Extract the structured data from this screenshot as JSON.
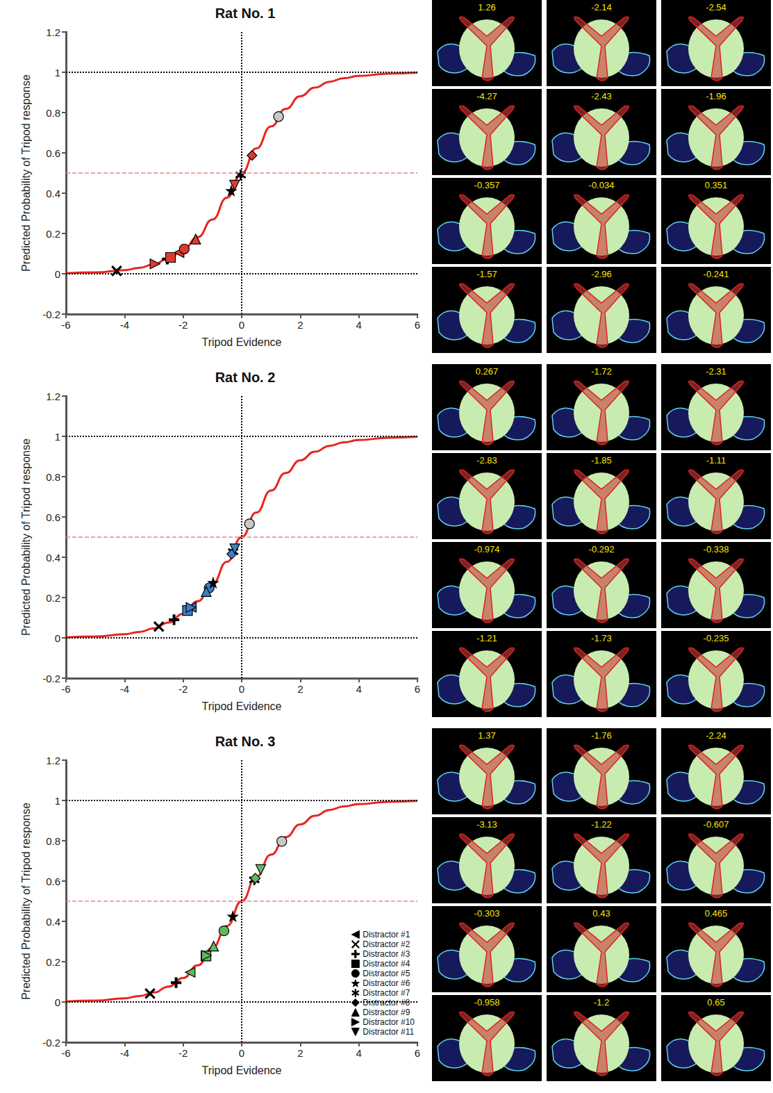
{
  "chart_data": [
    {
      "type": "scatter",
      "title": "Rat No. 1",
      "x_label": "Tripod Evidence",
      "y_label": "Predicted Probability of Tripod response",
      "xlim": [
        -6,
        6
      ],
      "xticks": [
        -6,
        -4,
        -2,
        0,
        2,
        4,
        6
      ],
      "ylim": [
        -0.2,
        1.2
      ],
      "yticks": [
        -0.2,
        0,
        0.2,
        0.4,
        0.6,
        0.8,
        1,
        1.2
      ],
      "curve": {
        "color": "#e8251e",
        "x": [
          -6,
          -5,
          -4,
          -3.5,
          -3,
          -2.5,
          -2,
          -1.5,
          -1,
          -0.5,
          0,
          0.5,
          1,
          1.5,
          2,
          2.5,
          3,
          3.5,
          4,
          5,
          6
        ],
        "y": [
          0.0025,
          0.0067,
          0.018,
          0.029,
          0.047,
          0.076,
          0.119,
          0.182,
          0.269,
          0.378,
          0.5,
          0.622,
          0.731,
          0.818,
          0.881,
          0.924,
          0.953,
          0.971,
          0.982,
          0.993,
          0.998
        ]
      },
      "hlines": [
        0,
        1
      ],
      "vlines": [
        0
      ],
      "threshold": 0.5,
      "points": [
        {
          "marker": "circle",
          "color": "#c8c8c8",
          "x": 1.26,
          "y": 0.78
        },
        {
          "marker": "triangle-left",
          "color": "#e03a2f",
          "x": -2.14,
          "y": 0.105
        },
        {
          "marker": "x",
          "color": "#000000",
          "x": -4.27,
          "y": 0.014
        },
        {
          "marker": "plus",
          "color": "#000000",
          "x": -2.54,
          "y": 0.073
        },
        {
          "marker": "square",
          "color": "#e03a2f",
          "x": -2.43,
          "y": 0.081
        },
        {
          "marker": "circle",
          "color": "#e03a2f",
          "x": -1.96,
          "y": 0.123
        },
        {
          "marker": "star",
          "color": "#000000",
          "x": -0.357,
          "y": 0.412
        },
        {
          "marker": "asterisk",
          "color": "#000000",
          "x": -0.034,
          "y": 0.49
        },
        {
          "marker": "diamond",
          "color": "#e03a2f",
          "x": 0.351,
          "y": 0.587
        },
        {
          "marker": "triangle",
          "color": "#e03a2f",
          "x": -1.57,
          "y": 0.172
        },
        {
          "marker": "triangle-right",
          "color": "#e03a2f",
          "x": -2.96,
          "y": 0.049
        },
        {
          "marker": "triangle-down",
          "color": "#e03a2f",
          "x": -0.241,
          "y": 0.44
        }
      ],
      "panel_values": [
        1.26,
        -2.14,
        -2.54,
        -4.27,
        -2.43,
        -1.96,
        -0.357,
        -0.034,
        0.351,
        -1.57,
        -2.96,
        -0.241
      ]
    },
    {
      "type": "scatter",
      "title": "Rat No. 2",
      "x_label": "Tripod Evidence",
      "y_label": "Predicted Probability of Tripod response",
      "xlim": [
        -6,
        6
      ],
      "xticks": [
        -6,
        -4,
        -2,
        0,
        2,
        4,
        6
      ],
      "ylim": [
        -0.2,
        1.2
      ],
      "yticks": [
        -0.2,
        0,
        0.2,
        0.4,
        0.6,
        0.8,
        1,
        1.2
      ],
      "curve": {
        "color": "#e8251e",
        "x": [
          -6,
          -5,
          -4,
          -3.5,
          -3,
          -2.5,
          -2,
          -1.5,
          -1,
          -0.5,
          0,
          0.5,
          1,
          1.5,
          2,
          2.5,
          3,
          3.5,
          4,
          5,
          6
        ],
        "y": [
          0.0025,
          0.0067,
          0.018,
          0.029,
          0.047,
          0.076,
          0.119,
          0.182,
          0.269,
          0.378,
          0.5,
          0.622,
          0.731,
          0.818,
          0.881,
          0.924,
          0.953,
          0.971,
          0.982,
          0.993,
          0.998
        ]
      },
      "hlines": [
        0,
        1
      ],
      "vlines": [
        0
      ],
      "threshold": 0.5,
      "points": [
        {
          "marker": "circle",
          "color": "#c8c8c8",
          "x": 0.267,
          "y": 0.566
        },
        {
          "marker": "triangle-left",
          "color": "#3b7fc4",
          "x": -1.72,
          "y": 0.152
        },
        {
          "marker": "x",
          "color": "#000000",
          "x": -2.83,
          "y": 0.056
        },
        {
          "marker": "plus",
          "color": "#000000",
          "x": -2.31,
          "y": 0.09
        },
        {
          "marker": "square",
          "color": "#3b7fc4",
          "x": -1.85,
          "y": 0.136
        },
        {
          "marker": "circle",
          "color": "#3b7fc4",
          "x": -1.11,
          "y": 0.248
        },
        {
          "marker": "star",
          "color": "#000000",
          "x": -0.974,
          "y": 0.274
        },
        {
          "marker": "asterisk",
          "color": "#000000",
          "x": -0.292,
          "y": 0.428
        },
        {
          "marker": "diamond",
          "color": "#3b7fc4",
          "x": -0.338,
          "y": 0.416
        },
        {
          "marker": "triangle",
          "color": "#3b7fc4",
          "x": -1.21,
          "y": 0.23
        },
        {
          "marker": "triangle-right",
          "color": "#3b7fc4",
          "x": -1.73,
          "y": 0.151
        },
        {
          "marker": "triangle-down",
          "color": "#3b7fc4",
          "x": -0.235,
          "y": 0.442
        }
      ],
      "panel_values": [
        0.267,
        -1.72,
        -2.31,
        -2.83,
        -1.85,
        -1.11,
        -0.974,
        -0.292,
        -0.338,
        -1.21,
        -1.73,
        -0.235
      ]
    },
    {
      "type": "scatter",
      "title": "Rat No. 3",
      "x_label": "Tripod Evidence",
      "y_label": "Predicted Probability of Tripod response",
      "xlim": [
        -6,
        6
      ],
      "xticks": [
        -6,
        -4,
        -2,
        0,
        2,
        4,
        6
      ],
      "ylim": [
        -0.2,
        1.2
      ],
      "yticks": [
        -0.2,
        0,
        0.2,
        0.4,
        0.6,
        0.8,
        1,
        1.2
      ],
      "curve": {
        "color": "#e8251e",
        "x": [
          -6,
          -5,
          -4,
          -3.5,
          -3,
          -2.5,
          -2,
          -1.5,
          -1,
          -0.5,
          0,
          0.5,
          1,
          1.5,
          2,
          2.5,
          3,
          3.5,
          4,
          5,
          6
        ],
        "y": [
          0.0025,
          0.0067,
          0.018,
          0.029,
          0.047,
          0.076,
          0.119,
          0.182,
          0.269,
          0.378,
          0.5,
          0.622,
          0.731,
          0.818,
          0.881,
          0.924,
          0.953,
          0.971,
          0.982,
          0.993,
          0.998
        ]
      },
      "hlines": [
        0,
        1
      ],
      "vlines": [
        0
      ],
      "threshold": 0.5,
      "legend": "lower right",
      "points": [
        {
          "marker": "circle",
          "color": "#c8c8c8",
          "x": 1.37,
          "y": 0.797
        },
        {
          "name": "Distractor #1",
          "marker": "triangle-left",
          "color": "#5fb85f",
          "x": -1.76,
          "y": 0.147
        },
        {
          "name": "Distractor #2",
          "marker": "x",
          "color": "#000000",
          "x": -3.13,
          "y": 0.042
        },
        {
          "name": "Distractor #3",
          "marker": "plus",
          "color": "#000000",
          "x": -2.24,
          "y": 0.096
        },
        {
          "name": "Distractor #4",
          "marker": "square",
          "color": "#5fb85f",
          "x": -1.22,
          "y": 0.228
        },
        {
          "name": "Distractor #5",
          "marker": "circle",
          "color": "#5fb85f",
          "x": -0.607,
          "y": 0.353
        },
        {
          "name": "Distractor #6",
          "marker": "star",
          "color": "#000000",
          "x": -0.303,
          "y": 0.425
        },
        {
          "name": "Distractor #7",
          "marker": "asterisk",
          "color": "#000000",
          "x": 0.43,
          "y": 0.606
        },
        {
          "name": "Distractor #8",
          "marker": "diamond",
          "color": "#5fb85f",
          "x": 0.465,
          "y": 0.614
        },
        {
          "name": "Distractor #9",
          "marker": "triangle",
          "color": "#5fb85f",
          "x": -0.958,
          "y": 0.277
        },
        {
          "name": "Distractor #10",
          "marker": "triangle-right",
          "color": "#5fb85f",
          "x": -1.2,
          "y": 0.231
        },
        {
          "name": "Distractor #11",
          "marker": "triangle-down",
          "color": "#5fb85f",
          "x": 0.65,
          "y": 0.657
        }
      ],
      "panel_values": [
        1.37,
        -1.76,
        -2.24,
        -3.13,
        -1.22,
        -0.607,
        -0.303,
        0.43,
        0.465,
        -0.958,
        -1.2,
        0.65
      ]
    }
  ]
}
